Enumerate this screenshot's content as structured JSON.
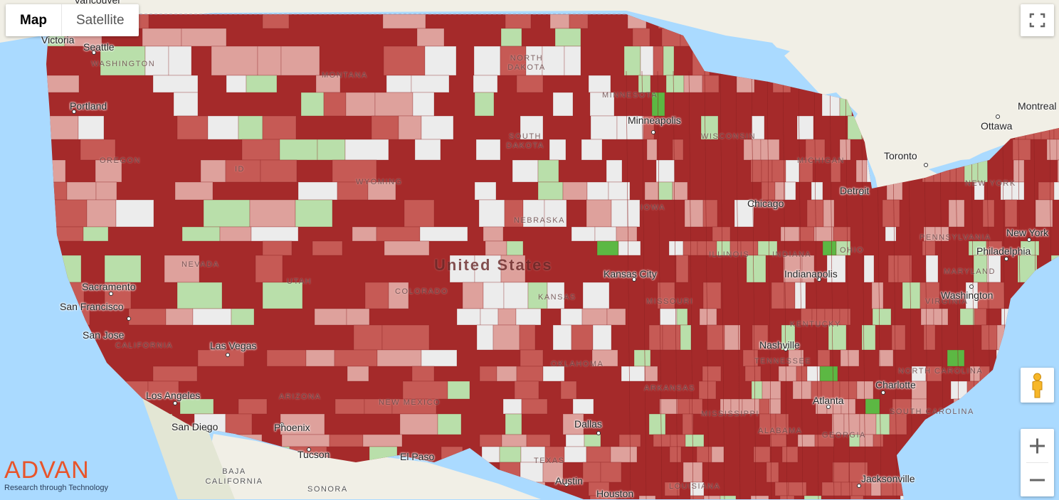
{
  "map_type": {
    "map_label": "Map",
    "satellite_label": "Satellite",
    "selected": "Map"
  },
  "country_label": "United States",
  "states": [
    "WASHINGTON",
    "OREGON",
    "MONTANA",
    "NORTH DAKOTA",
    "SOUTH DAKOTA",
    "WYOMING",
    "NEVADA",
    "UTAH",
    "COLORADO",
    "CALIFORNIA",
    "ARIZONA",
    "NEW MEXICO",
    "NEBRASKA",
    "KANSAS",
    "OKLAHOMA",
    "TEXAS",
    "MINNESOTA",
    "WISCONSIN",
    "MICHIGAN",
    "IOWA",
    "MISSOURI",
    "ARKANSAS",
    "LOUISIANA",
    "MISSISSIPPI",
    "ALABAMA",
    "TENNESSEE",
    "KENTUCKY",
    "ILLINOIS",
    "INDIANA",
    "OHIO",
    "PENNSYLVANIA",
    "NEW YORK",
    "MARYLAND",
    "VIRGINIA",
    "NORTH CAROLINA",
    "SOUTH CAROLINA",
    "GEORGIA",
    "ID"
  ],
  "regions": [
    "BAJA CALIFORNIA",
    "SONORA"
  ],
  "cities": [
    "Seattle",
    "Portland",
    "Sacramento",
    "San Francisco",
    "San Jose",
    "Los Angeles",
    "San Diego",
    "Las Vegas",
    "Phoenix",
    "Tucson",
    "El Paso",
    "Dallas",
    "Austin",
    "Houston",
    "Kansas City",
    "Minneapolis",
    "Chicago",
    "Detroit",
    "Toronto",
    "Ottawa",
    "Montreal",
    "Indianapolis",
    "Nashville",
    "Atlanta",
    "Charlotte",
    "Jacksonville",
    "Washington",
    "Philadelphia",
    "New York",
    "Victoria",
    "Vancouver"
  ],
  "controls": {
    "fullscreen_icon": "fullscreen-icon",
    "pegman_icon": "pegman-icon",
    "zoom_in_icon": "plus-icon",
    "zoom_out_icon": "minus-icon"
  },
  "logo": {
    "brand": "ADVAN",
    "tagline": "Research through Technology"
  },
  "colors": {
    "water": "#aadaff",
    "land": "#f1efe6",
    "mountain": "#e3e6d4",
    "dark_red": "#a52a2a",
    "mid_red": "#c65a55",
    "light_red": "#dea19c",
    "pale": "#ececec",
    "light_green": "#b9dfaa",
    "green": "#5cb843"
  }
}
